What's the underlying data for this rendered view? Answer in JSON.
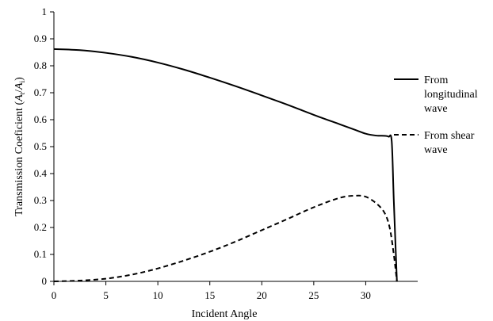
{
  "chart_data": {
    "type": "line",
    "xlabel": "Incident Angle",
    "ylabel": {
      "prefix": "Transmission Coeficient (",
      "var1": "A",
      "sub1": "t",
      "slash": "/",
      "var2": "A",
      "sub2": "i",
      "suffix": ")"
    },
    "xlim": [
      0,
      35
    ],
    "ylim": [
      0,
      1
    ],
    "xticks": [
      "0",
      "5",
      "10",
      "15",
      "20",
      "25",
      "30"
    ],
    "yticks": [
      "0",
      "0.1",
      "0.2",
      "0.3",
      "0.4",
      "0.5",
      "0.6",
      "0.7",
      "0.8",
      "0.9",
      "1"
    ],
    "grid": false,
    "legend_position": "right",
    "series": [
      {
        "name": "From longitudinal wave",
        "legend_lines": [
          "From",
          "longitudinal",
          "wave"
        ],
        "style": "solid",
        "color": "#000000",
        "x": [
          0,
          2.5,
          5,
          7.5,
          10,
          12.5,
          15,
          17.5,
          20,
          22.5,
          25,
          27.5,
          29,
          30,
          31,
          31.8,
          32.2,
          32.5,
          32.7,
          33
        ],
        "y": [
          0.862,
          0.858,
          0.848,
          0.833,
          0.812,
          0.786,
          0.756,
          0.724,
          0.69,
          0.655,
          0.618,
          0.583,
          0.562,
          0.548,
          0.541,
          0.54,
          0.537,
          0.52,
          0.3,
          0
        ]
      },
      {
        "name": "From shear wave",
        "legend_lines": [
          "From shear",
          "wave"
        ],
        "style": "dashed",
        "color": "#000000",
        "x": [
          0,
          2.5,
          5,
          7.5,
          10,
          12.5,
          15,
          17.5,
          20,
          22.5,
          25,
          27.5,
          29,
          30,
          31,
          31.8,
          32.3,
          32.7,
          33
        ],
        "y": [
          0,
          0.003,
          0.01,
          0.025,
          0.048,
          0.077,
          0.11,
          0.148,
          0.19,
          0.232,
          0.275,
          0.31,
          0.318,
          0.314,
          0.29,
          0.255,
          0.2,
          0.1,
          0
        ]
      }
    ]
  }
}
